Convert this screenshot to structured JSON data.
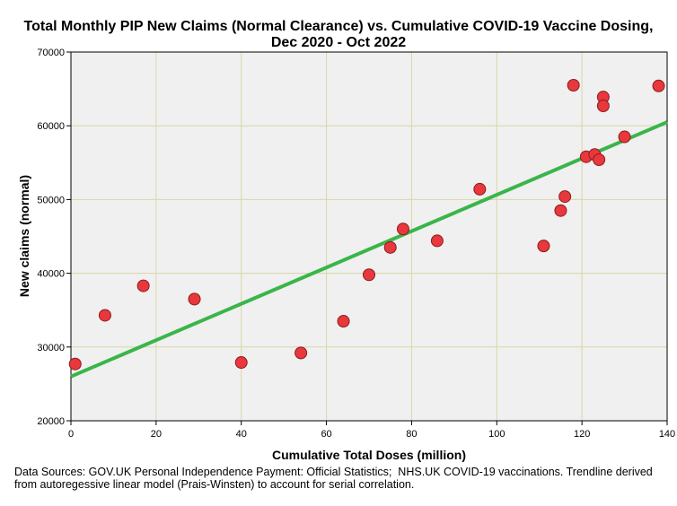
{
  "chart_data": {
    "type": "scatter",
    "title_lines": [
      "Total Monthly PIP New Claims (Normal Clearance) vs. Cumulative COVID-19 Vaccine Dosing,",
      "Dec 2020 - Oct 2022"
    ],
    "xlabel": "Cumulative Total Doses (million)",
    "ylabel": "New claims (normal)",
    "xlim": [
      0,
      140
    ],
    "ylim": [
      20000,
      70000
    ],
    "x_ticks": [
      0,
      20,
      40,
      60,
      80,
      100,
      120,
      140
    ],
    "y_ticks": [
      20000,
      30000,
      40000,
      50000,
      60000,
      70000
    ],
    "grid": true,
    "colors": {
      "plot_background": "#f0f0f0",
      "grid": "#d8d6a8",
      "points": "#e8383d",
      "point_edge": "#8c1c1c",
      "trendline": "#3ab54a"
    },
    "points": [
      {
        "x": 1,
        "y": 27700
      },
      {
        "x": 8,
        "y": 34300
      },
      {
        "x": 17,
        "y": 38300
      },
      {
        "x": 29,
        "y": 36500
      },
      {
        "x": 40,
        "y": 27900
      },
      {
        "x": 54,
        "y": 29200
      },
      {
        "x": 64,
        "y": 33500
      },
      {
        "x": 70,
        "y": 39800
      },
      {
        "x": 75,
        "y": 43500
      },
      {
        "x": 78,
        "y": 46000
      },
      {
        "x": 86,
        "y": 44400
      },
      {
        "x": 96,
        "y": 51400
      },
      {
        "x": 111,
        "y": 43700
      },
      {
        "x": 115,
        "y": 48500
      },
      {
        "x": 116,
        "y": 50400
      },
      {
        "x": 118,
        "y": 65500
      },
      {
        "x": 121,
        "y": 55800
      },
      {
        "x": 123,
        "y": 56100
      },
      {
        "x": 124,
        "y": 55400
      },
      {
        "x": 125,
        "y": 63900
      },
      {
        "x": 125,
        "y": 62700
      },
      {
        "x": 130,
        "y": 58500
      },
      {
        "x": 138,
        "y": 65400
      }
    ],
    "trendline": {
      "x": [
        0,
        140
      ],
      "y": [
        26000,
        60500
      ]
    }
  },
  "footnote": "Data Sources: GOV.UK Personal Independence Payment: Official Statistics;  NHS.UK COVID-19 vaccinations. Trendline derived from autoregessive linear model (Prais-Winsten) to account for serial correlation."
}
